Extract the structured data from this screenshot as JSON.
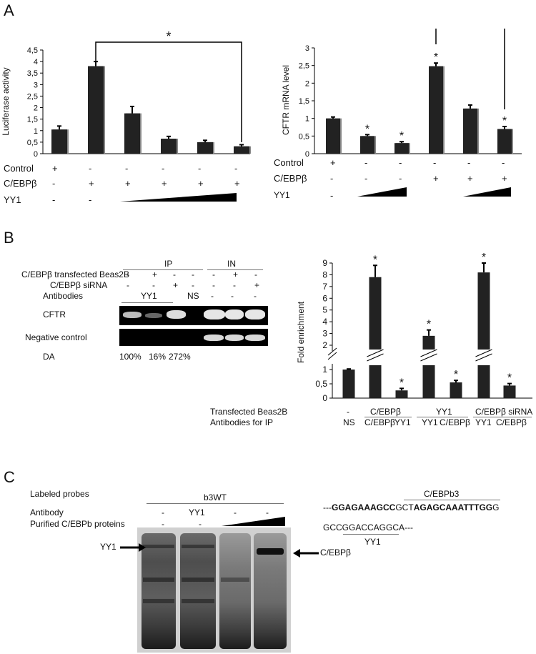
{
  "panels": {
    "a": "A",
    "b": "B",
    "c": "C"
  },
  "panel_a": {
    "sig_star": "*",
    "left": {
      "row_labels": [
        "Control",
        "C/EBPβ",
        "YY1"
      ],
      "control_signs": [
        "+",
        "-",
        "-",
        "-",
        "-",
        "-"
      ],
      "cebp_signs": [
        "-",
        "+",
        "+",
        "+",
        "+",
        "+"
      ],
      "yy1_signs": [
        "-",
        "-"
      ]
    },
    "right": {
      "row_labels": [
        "Control",
        "C/EBPβ",
        "YY1"
      ],
      "control_signs": [
        "+",
        "-",
        "-",
        "-",
        "-",
        "-"
      ],
      "cebp_signs": [
        "-",
        "-",
        "-",
        "+",
        "+",
        "+"
      ],
      "yy1_signs": [
        "-",
        "-"
      ]
    }
  },
  "chart_data": [
    {
      "type": "bar",
      "ylabel": "Luciferase activity",
      "xlabel": "",
      "ylim": [
        0,
        4.5
      ],
      "yticks": [
        "0",
        "0,5",
        "1",
        "1,5",
        "2",
        "2,5",
        "3",
        "3,5",
        "4",
        "4,5"
      ],
      "categories": [
        "",
        "",
        "",
        "",
        "",
        ""
      ],
      "values": [
        1.05,
        3.8,
        1.75,
        0.65,
        0.5,
        0.32
      ],
      "errors": [
        0.15,
        0.2,
        0.3,
        0.1,
        0.08,
        0.07
      ],
      "annotations": [
        "*"
      ]
    },
    {
      "type": "bar",
      "ylabel": "CFTR mRNA level",
      "xlabel": "",
      "ylim": [
        0,
        3
      ],
      "yticks": [
        "0",
        "0,5",
        "1",
        "1,5",
        "2",
        "2,5",
        "3"
      ],
      "categories": [
        "",
        "",
        "",
        "",
        "",
        ""
      ],
      "values": [
        1.0,
        0.5,
        0.3,
        2.48,
        1.28,
        0.7
      ],
      "errors": [
        0.04,
        0.04,
        0.04,
        0.09,
        0.1,
        0.07
      ],
      "stars": [
        "",
        "*",
        "*",
        "*",
        "",
        "*"
      ],
      "annotations": [
        "*"
      ]
    },
    {
      "type": "bar",
      "ylabel": "Fold enrichment",
      "xlabel": "",
      "broken_axis": true,
      "upper_yticks": [
        "2",
        "3",
        "4",
        "5",
        "6",
        "7",
        "8",
        "9"
      ],
      "lower_yticks": [
        "0",
        "0,5",
        "1"
      ],
      "values": [
        1.0,
        7.8,
        0.27,
        2.8,
        0.55,
        8.2,
        0.44
      ],
      "errors": [
        0.02,
        1.0,
        0.07,
        0.5,
        0.07,
        0.8,
        0.07
      ],
      "stars": [
        "",
        "*",
        "*",
        "*",
        "*",
        "*",
        "*"
      ],
      "row_labels": [
        "Transfected Beas2B",
        "Antibodies for IP"
      ],
      "group_transfected": [
        "-",
        "C/EBPβ",
        "YY1",
        "C/EBPβ siRNA"
      ],
      "antibody_labels": [
        "NS",
        "C/EBPβ",
        "YY1",
        "YY1",
        "C/EBPβ",
        "YY1",
        "C/EBPβ"
      ]
    }
  ],
  "panel_b": {
    "headers": {
      "ip": "IP",
      "in": "IN"
    },
    "row_labels": {
      "transfected": "C/EBPβ transfected Beas2B",
      "sirna": "C/EBPβ siRNA",
      "antibodies": "Antibodies",
      "cftr": "CFTR",
      "negative": "Negative control",
      "da": "DA"
    },
    "transfected_signs": [
      "-",
      "+",
      "-",
      "-",
      "-",
      "+",
      "-"
    ],
    "sirna_signs": [
      "-",
      "-",
      "+",
      "-",
      "-",
      "-",
      "+"
    ],
    "antibody_yy1": "YY1",
    "antibody_ns": "NS",
    "antibody_dashes": [
      "-",
      "-",
      "-"
    ],
    "da_values": [
      "100%",
      "16%",
      "272%"
    ]
  },
  "panel_c": {
    "labeled_probes": "Labeled probes",
    "probe_name": "b3WT",
    "antibody": "Antibody",
    "purified": "Purified C/EBPb proteins",
    "antibody_signs": [
      "-",
      "YY1",
      "-",
      "-"
    ],
    "purified_signs": [
      "-",
      "-"
    ],
    "yy1_arrow": "YY1",
    "cebp_arrow": "C/EBPβ",
    "site1_label": "C/EBPb3",
    "seq_prefix": "---",
    "seq_bold1": "GGAGAAAGCC",
    "seq_mid": "GCT",
    "seq_bold2": "AGAGCAAATTTGG",
    "seq_end": "G",
    "seq2_a": "GCCGG",
    "seq2_b": "ACCAGG",
    "seq2_c": "CA---",
    "site2_label": "YY1"
  }
}
